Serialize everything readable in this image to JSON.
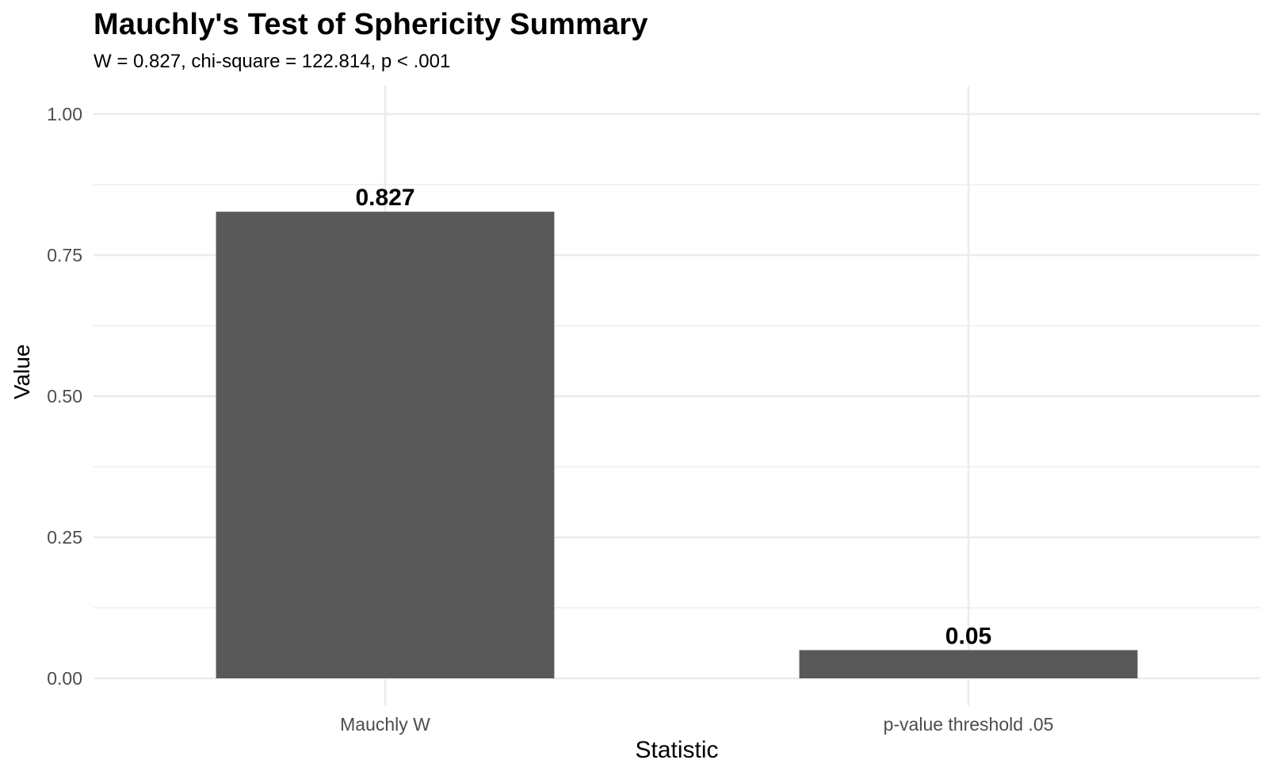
{
  "chart_data": {
    "type": "bar",
    "title": "Mauchly's Test of Sphericity Summary",
    "subtitle": "W = 0.827, chi-square = 122.814, p < .001",
    "xlabel": "Statistic",
    "ylabel": "Value",
    "categories": [
      "Mauchly W",
      "p-value threshold .05"
    ],
    "values": [
      0.827,
      0.05
    ],
    "data_labels": [
      "0.827",
      "0.05"
    ],
    "ylim": [
      0,
      1.05
    ],
    "yticks": [
      0,
      0.25,
      0.5,
      0.75,
      1.0
    ],
    "ytick_labels": [
      "0.00",
      "0.25",
      "0.50",
      "0.75",
      "1.00"
    ],
    "grid": true,
    "bar_color": "#595959",
    "grid_color": "#ebebeb"
  }
}
